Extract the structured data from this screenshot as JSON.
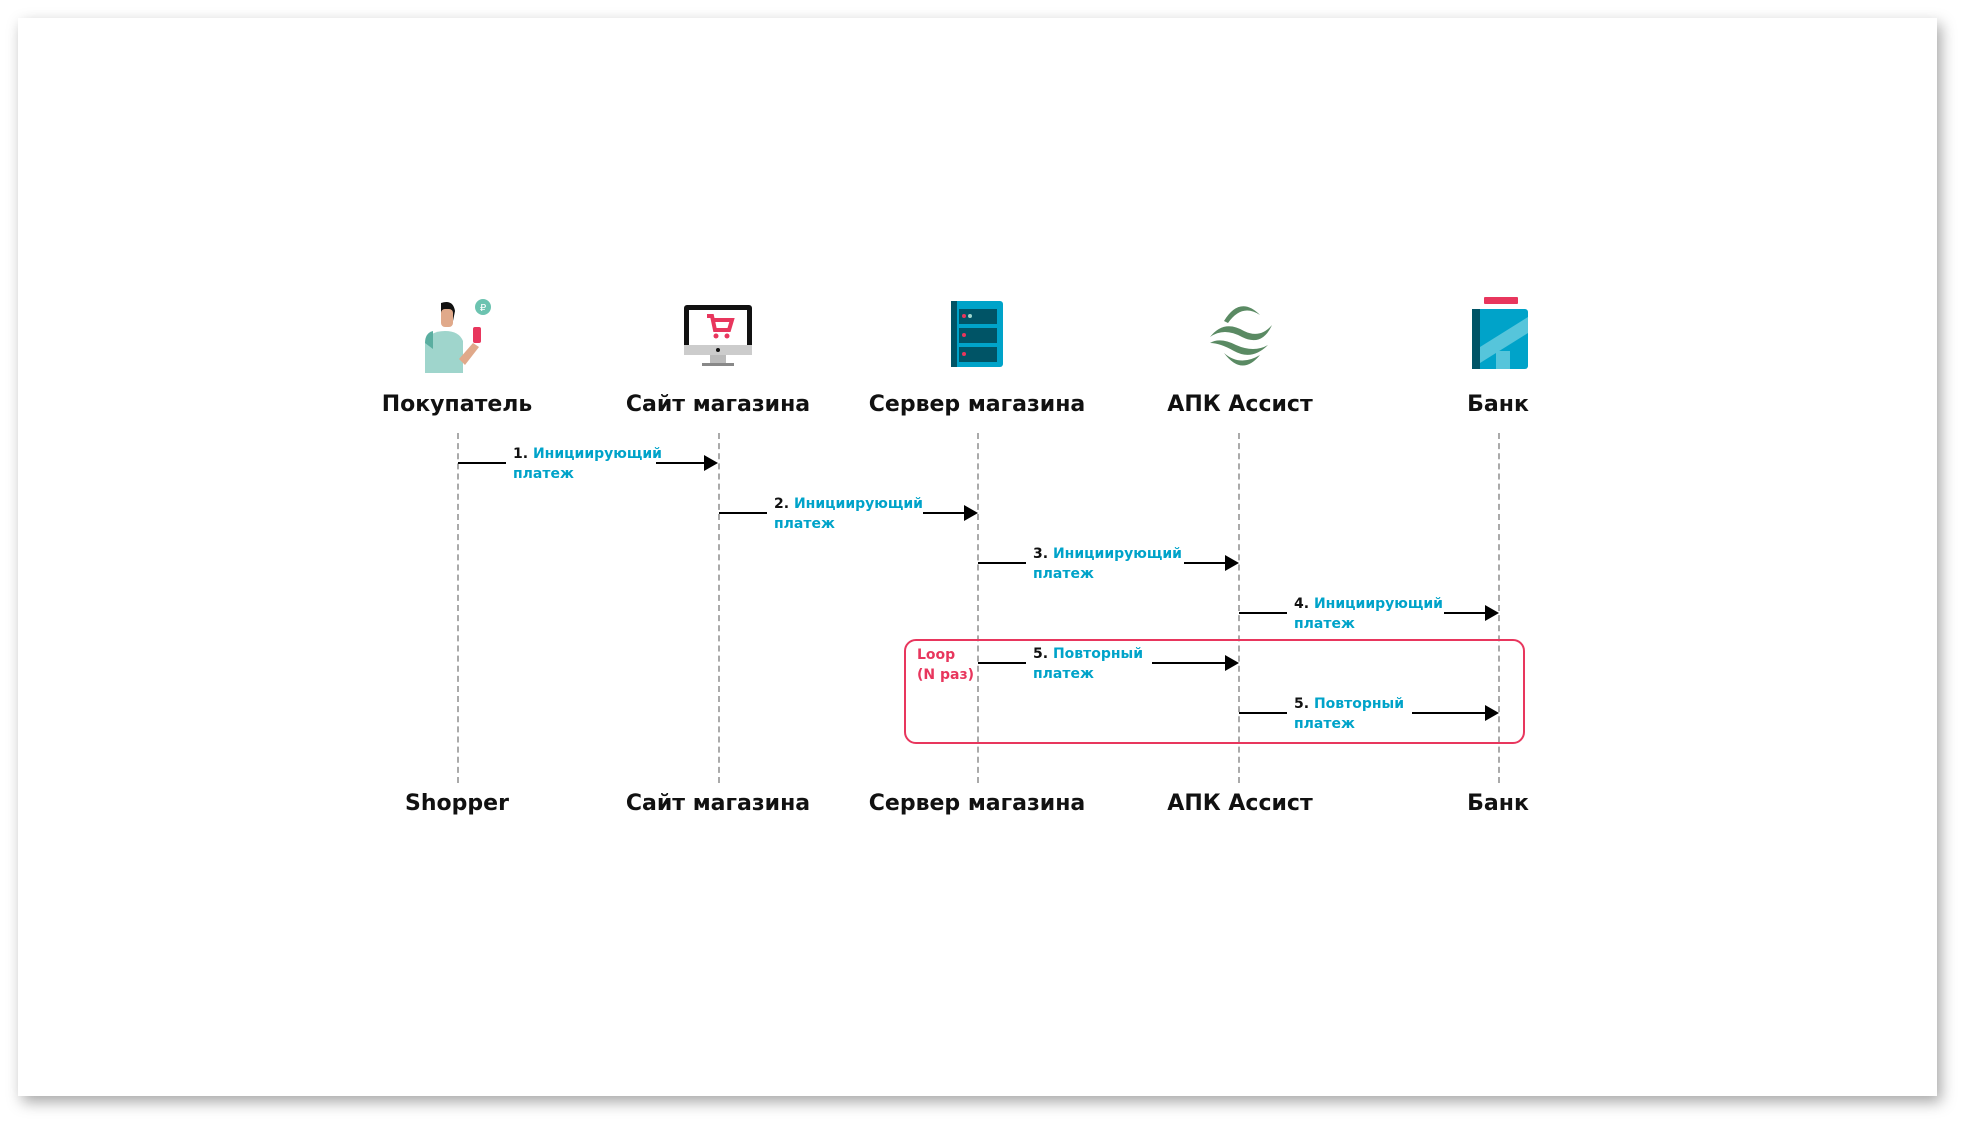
{
  "actors_top": [
    "Покупатель",
    "Сайт магазина",
    "Сервер магазина",
    "АПК Ассист",
    "Банк"
  ],
  "actors_bottom": [
    "Shopper",
    "Сайт магазина",
    "Сервер магазина",
    "АПК Ассист",
    "Банк"
  ],
  "icons": [
    "shopper-icon",
    "shop-website-monitor-icon",
    "shop-server-icon",
    "assist-logo-icon",
    "bank-building-icon"
  ],
  "messages": [
    {
      "num": "1.",
      "line1": "Инициирующий",
      "line2": "платеж"
    },
    {
      "num": "2.",
      "line1": "Инициирующий",
      "line2": "платеж"
    },
    {
      "num": "3.",
      "line1": "Инициирующий",
      "line2": "платеж"
    },
    {
      "num": "4.",
      "line1": "Инициирующий",
      "line2": "платеж"
    },
    {
      "num": "5.",
      "line1": "Повторный",
      "line2": "платеж"
    },
    {
      "num": "5.",
      "line1": "Повторный",
      "line2": "платеж"
    }
  ],
  "loop": {
    "line1": "Loop",
    "line2": "(N раз)"
  },
  "colors": {
    "accent": "#00a3c9",
    "loop": "#e8365d",
    "assist_green": "#5a8a63"
  }
}
